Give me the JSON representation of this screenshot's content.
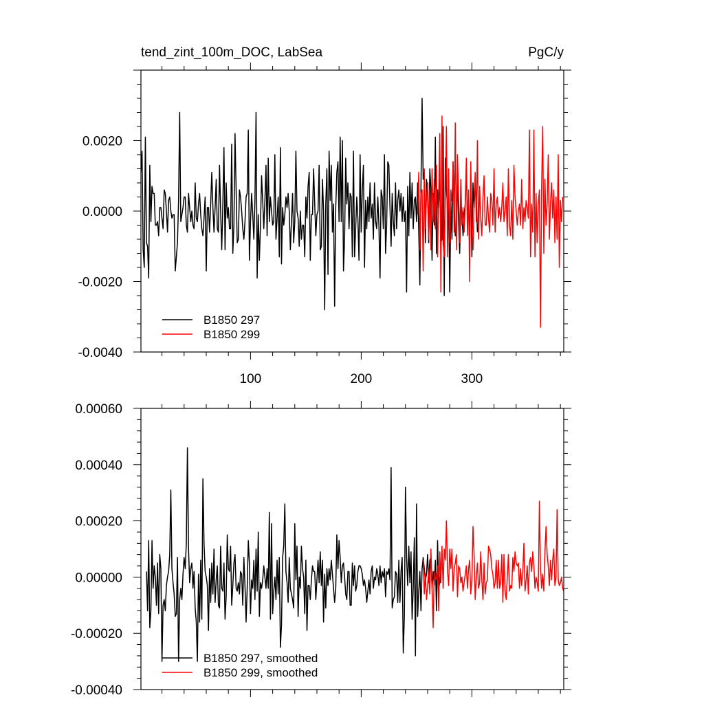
{
  "chart_data": [
    {
      "type": "line",
      "title": "tend_zint_100m_DOC, LabSea",
      "units": "PgC/y",
      "xlim": [
        1,
        383
      ],
      "ylim": [
        -0.004,
        0.004
      ],
      "xticks": [
        100,
        200,
        300
      ],
      "xtick_labels": [
        "100",
        "200",
        "300"
      ],
      "yticks": [
        -0.004,
        -0.002,
        0.0,
        0.002
      ],
      "ytick_labels": [
        "-0.0040",
        "-0.0020",
        "0.0000",
        "0.0020"
      ],
      "legend_position": "bottom-left",
      "series": [
        {
          "name": "B1850 297",
          "color": "#000000",
          "x_start": 1,
          "values": [
            0.0011,
            0.0017,
            -0.0011,
            -0.0016,
            0.0021,
            -0.0009,
            -0.001,
            -0.0019,
            0.0013,
            -0.0003,
            0.0007,
            0.0005,
            0.0005,
            -0.0004,
            -0.0004,
            -0.0003,
            -0.0007,
            0.0001,
            0.0001,
            -0.0002,
            -0.0005,
            0.0006,
            0.0005,
            0.0,
            -0.0006,
            0.0003,
            0.0004,
            0.0,
            -0.0002,
            -0.0001,
            -0.0001,
            -0.0017,
            -0.0013,
            -0.0009,
            0.0003,
            0.0028,
            -0.0003,
            -0.0001,
            0.0001,
            0.0004,
            0.0004,
            -0.0004,
            -0.0006,
            0.0005,
            0.0001,
            -0.0003,
            0.0,
            -0.0004,
            -0.0005,
            0.0008,
            -0.0002,
            -0.0003,
            0.0002,
            0.0005,
            -0.0001,
            -0.0005,
            -0.0007,
            -0.0002,
            0.0004,
            -0.0017,
            0.0001,
            0.0001,
            -0.0006,
            0.0002,
            0.0011,
            0.0001,
            -0.0006,
            0.0001,
            0.0009,
            -0.0005,
            -0.0006,
            0.0013,
            0.0,
            -0.0011,
            0.0002,
            0.0018,
            -0.0011,
            0.0008,
            -0.0002,
            0.0001,
            -0.0005,
            -0.0005,
            0.0019,
            -0.0012,
            -0.0004,
            0.0022,
            0.0006,
            -0.0009,
            -0.0008,
            0.0006,
            0.0004,
            0.0,
            -0.0005,
            -0.0008,
            -0.0003,
            0.0004,
            0.0005,
            0.0023,
            -0.0014,
            -0.0003,
            0.0005,
            -0.0001,
            -0.0008,
            0.0003,
            0.0028,
            -0.0019,
            -0.0001,
            -0.0014,
            -0.0004,
            0.001,
            0.0003,
            -0.0005,
            0.0003,
            0.0013,
            -0.0007,
            0.0015,
            -0.0003,
            0.0004,
            0.0,
            -0.0004,
            -0.0003,
            0.0016,
            -0.0008,
            -0.0002,
            0.0004,
            -0.0013,
            0.0018,
            -0.0015,
            0.0001,
            -0.0004,
            -0.0001,
            0.0004,
            0.0001,
            0.0005,
            0.0,
            -0.0011,
            -0.0003,
            0.0005,
            -0.0009,
            -0.0003,
            0.0017,
            0.0,
            -0.0002,
            -0.001,
            0.0,
            -0.0008,
            -0.0004,
            -0.0004,
            -0.0013,
            0.0004,
            -0.0002,
            0.0007,
            0.0011,
            -0.0014,
            -0.0001,
            -0.0001,
            0.0012,
            0.0002,
            -0.0007,
            -0.0001,
            0.0,
            0.0013,
            -0.0011,
            -0.001,
            0.0009,
            0.0,
            -0.0028,
            0.0002,
            0.0012,
            -0.0018,
            0.0017,
            0.0003,
            0.0013,
            -0.0006,
            0.0002,
            -0.0027,
            0.0001,
            0.0011,
            0.0014,
            -0.0003,
            0.0021,
            -0.0003,
            0.002,
            -0.0017,
            -0.0008,
            0.0015,
            0.0002,
            0.0008,
            -0.0005,
            0.0005,
            0.0004,
            -0.0013,
            0.0017,
            -0.0013,
            -0.0005,
            0.0004,
            -0.0002,
            -0.0014,
            0.0016,
            -0.0006,
            0.0006,
            0.0013,
            -0.0016,
            0.0003,
            -0.0005,
            0.0004,
            -0.0003,
            0.0008,
            -0.0002,
            0.0002,
            -0.0008,
            0.0008,
            -0.0003,
            -0.0005,
            0.0004,
            -0.0004,
            -0.0019,
            0.0006,
            0.0004,
            -0.0005,
            0.0016,
            -0.0012,
            -0.0004,
            0.0014,
            0.0013,
            0.0001,
            -0.001,
            0.0005,
            -0.0003,
            -0.0007,
            0.0008,
            -0.0005,
            0.0003,
            0.0006,
            0.0,
            0.0005,
            -0.0003,
            0.0004,
            -0.0003,
            0.0,
            -0.0023,
            0.0007,
            -0.0007,
            0.0011,
            -0.0002,
            0.0008,
            -0.0005,
            0.0003,
            0.0004,
            -0.0003,
            0.0008,
            -0.0006,
            -0.0021,
            0.0007,
            0.0032,
            0.0009,
            0.0011,
            -0.0009,
            0.0009,
            0.0005,
            -0.0009,
            0.0012,
            0.0006,
            -0.0014,
            0.0005,
            -0.0004,
            0.0021,
            -0.0012,
            0.0006,
            0.0001,
            0.0009,
            -0.0009,
            -0.0008,
            0.0024,
            -0.0024,
            0.0015,
            0.0006,
            0.0001,
            0.0002,
            -0.0023,
            0.0002,
            -0.0008,
            0.0014,
            0.0003,
            -0.0007,
            -0.0007,
            0.0011,
            -0.0003,
            -0.0012,
            0.0002,
            -0.0001,
            -0.0007,
            -0.0001,
            0.0002,
            0.0012,
            -0.0002,
            0.0002,
            -0.0009,
            0.0011,
            -0.0013,
            0.0008,
            0.0001,
            0.0007,
            0.0004,
            -0.0006
          ]
        },
        {
          "name": "B1850 299",
          "color": "#ff0000",
          "x_start": 251,
          "values": [
            -0.0001,
            0.0011,
            -0.0011,
            0.0005,
            0.0006,
            -0.0017,
            0.0012,
            -0.0005,
            0.0004,
            0.0008,
            -0.0008,
            0.0006,
            -0.0011,
            0.0012,
            -0.0003,
            0.0009,
            -0.0005,
            0.0013,
            -0.0013,
            0.0004,
            0.0022,
            -0.0023,
            0.0027,
            -0.0009,
            -0.0013,
            0.0004,
            0.0024,
            -0.0013,
            0.0012,
            -0.0009,
            0.0006,
            0.0002,
            0.0014,
            -0.0006,
            0.0025,
            -0.0011,
            0.0016,
            0.0004,
            -0.0009,
            0.0009,
            -0.0004,
            0.0001,
            -0.0006,
            0.0002,
            0.0015,
            -0.0007,
            0.0006,
            -0.002,
            0.0014,
            -0.0005,
            -0.0011,
            0.0002,
            0.0011,
            -0.0003,
            0.002,
            -0.0008,
            0.0007,
            -0.0002,
            -0.0007,
            0.0004,
            0.001,
            -0.0004,
            -0.0004,
            0.0004,
            -0.0002,
            -0.0006,
            0.0005,
            0.0003,
            -0.0004,
            0.0012,
            -0.0006,
            0.0002,
            0.0004,
            -0.0002,
            0.0001,
            -0.0003,
            0.0001,
            0.0008,
            -0.0003,
            0.0,
            0.0004,
            -0.0007,
            0.0012,
            -0.0004,
            -0.0007,
            0.0003,
            -0.0008,
            0.0013,
            0.0004,
            0.0,
            -0.0004,
            0.0,
            0.0002,
            -0.0004,
            0.0009,
            -0.0005,
            0.0001,
            -0.0003,
            0.0003,
            0.0001,
            -0.0002,
            0.0023,
            -0.0013,
            0.0002,
            -0.0006,
            0.0023,
            -0.0013,
            0.0005,
            -0.0009,
            0.0002,
            0.0006,
            -0.0033,
            0.0007,
            0.0024,
            -0.0012,
            0.0009,
            -0.0004,
            0.0002,
            0.0016,
            -0.0008,
            0.0002,
            0.0008,
            -0.0002,
            0.0006,
            -0.0009,
            0.0004,
            -0.0008,
            0.0016,
            -0.0016,
            0.0003,
            -0.0003,
            0.0004
          ]
        }
      ]
    },
    {
      "type": "line",
      "xlim": [
        1,
        383
      ],
      "ylim": [
        -0.0004,
        0.0006
      ],
      "xticks": [
        100,
        200,
        300
      ],
      "yticks": [
        -0.0004,
        -0.0002,
        0.0,
        0.0002,
        0.0004,
        0.0006
      ],
      "ytick_labels": [
        "-0.00040",
        "-0.00020",
        "0.00000",
        "0.00020",
        "0.00040",
        "0.00060"
      ],
      "legend_position": "bottom-left",
      "series": [
        {
          "name": "B1850 297, smoothed",
          "color": "#000000",
          "x_start": 6,
          "values": [
            2e-05,
            -0.00012,
            0.00013,
            -0.00018,
            -0.00012,
            0.00013,
            -4e-05,
            4e-05,
            0.0,
            -0.0001,
            5e-05,
            -0.00013,
            8e-05,
            3e-05,
            -0.0003,
            -0.0001,
            -8e-05,
            -0.00012,
            -3e-05,
            0.0,
            2e-05,
            8e-05,
            0.00031,
            3e-05,
            -2e-05,
            -6e-05,
            -0.00014,
            -0.00013,
            7e-05,
            -0.0003,
            -8e-05,
            -4e-05,
            -8e-05,
            1e-05,
            7e-05,
            3e-05,
            0.00012,
            0.00046,
            0.0001,
            -2e-05,
            3e-05,
            5e-05,
            -4e-05,
            2e-05,
            -0.00011,
            -0.00016,
            -0.0003,
            1e-05,
            -0.00016,
            6e-05,
            -0.00015,
            0.00035,
            0.00012,
            2e-05,
            0.0,
            -3e-05,
            -0.00019,
            3e-05,
            -9e-05,
            5e-05,
            -6e-05,
            0.0001,
            -9e-05,
            -1e-05,
            4e-05,
            -0.0001,
            -0.00011,
            0.00011,
            -4e-05,
            -5e-05,
            5e-05,
            -0.00015,
            -7e-05,
            0.00015,
            3e-05,
            2e-05,
            0.00011,
            -0.0001,
            -3e-05,
            5e-05,
            8e-05,
            -4e-05,
            -5e-05,
            -2e-05,
            -6e-05,
            2e-05,
            1e-05,
            -0.0001,
            7e-05,
            -3e-05,
            -0.00016,
            -4e-05,
            0.00013,
            5e-05,
            -0.00013,
            -1e-05,
            -4e-05,
            6e-05,
            -8e-05,
            0.0001,
            -5e-05,
            0.00016,
            -0.00014,
            -2e-05,
            -4e-05,
            -1e-05,
            4e-05,
            -0.0,
            -4e-05,
            3e-05,
            -4e-05,
            0.00023,
            -0.00015,
            0.00019,
            -0.00013,
            -5e-05,
            0.0,
            -8e-05,
            6e-05,
            -6e-05,
            7e-05,
            -0.00025,
            -0.00017,
            7e-05,
            0.00011,
            0.00026,
            2e-05,
            -2e-05,
            -9e-05,
            7e-05,
            -4e-05,
            -6e-05,
            -8e-05,
            -0.00011,
            0.00019,
            -1e-05,
            0.00011,
            -0.00014,
            0.0,
            -4e-05,
            0.00011,
            3e-05,
            0.0,
            -0.00013,
            6e-05,
            -0.00019,
            -3e-05,
            -3e-05,
            -8e-05,
            -1e-05,
            4e-05,
            2e-05,
            2e-05,
            -8e-05,
            -1e-05,
            6e-05,
            -2e-05,
            9e-05,
            -3e-05,
            6e-05,
            -0.00016,
            1e-05,
            -0.00011,
            3e-05,
            -3e-05,
            3e-05,
            -1e-05,
            6e-05,
            1e-05,
            -4e-05,
            -9e-05,
            -4e-05,
            0.00015,
            3e-05,
            0.00013,
            7e-05,
            -2e-05,
            4e-05,
            5e-05,
            0.0,
            -6e-05,
            -8e-05,
            2e-05,
            2e-05,
            -0.0001,
            -0.0001,
            5e-05,
            -3e-05,
            4e-05,
            -5e-05,
            -3e-05,
            2e-05,
            4e-05,
            4e-05,
            3e-05,
            1e-05,
            -3e-05,
            -1e-05,
            -4e-05,
            -9e-05,
            -5e-05,
            -1e-05,
            -6e-05,
            2e-05,
            4e-05,
            -4e-05,
            0.0,
            -1e-05,
            3e-05,
            1e-05,
            -3e-05,
            4e-05,
            -2e-05,
            2e-05,
            0.0,
            3e-05,
            -7e-05,
            2e-05,
            1e-05,
            3e-05,
            -1e-05,
            0.00039,
            -0.00011,
            -8e-05,
            -7e-05,
            2e-05,
            1e-05,
            -9e-05,
            6e-05,
            -9e-05,
            2e-05,
            7e-05,
            -0.00027,
            -0.00014,
            0.00032,
            7e-05,
            -3e-05,
            0.00011,
            -2e-05,
            9e-05,
            -0.00015,
            -4e-05,
            0.00014,
            -0.00028,
            0.00026,
            -0.00014,
            -5e-05,
            2e-05,
            -0.00012,
            3e-05,
            7e-05,
            3e-05,
            -1e-05,
            1e-05,
            8e-05,
            -2e-05,
            6e-05,
            7e-05,
            -4e-05,
            2e-05,
            -3e-05,
            6e-05,
            -0.00012,
            0.00013,
            -4e-05,
            -2e-05,
            2e-05
          ]
        },
        {
          "name": "B1850 299, smoothed",
          "color": "#ff0000",
          "x_start": 256,
          "values": [
            6e-05,
            -6e-05,
            1e-05,
            -8e-05,
            -3e-05,
            3e-05,
            -6e-05,
            0.0001,
            -4e-05,
            -0.00018,
            2e-05,
            -1e-05,
            0.0,
            4e-05,
            -0.00012,
            9e-05,
            -2e-05,
            0.00011,
            -4e-05,
            0.0001,
            6e-05,
            0.0002,
            2e-05,
            -3e-05,
            0.0001,
            3e-05,
            0.0001,
            -5e-05,
            3e-05,
            5e-05,
            8e-05,
            -7e-05,
            4e-05,
            3e-05,
            -2e-05,
            0.0,
            -5e-05,
            -2e-05,
            1e-05,
            4e-05,
            -4e-05,
            3e-05,
            6e-05,
            -6e-05,
            -1e-05,
            0.00018,
            8e-05,
            -8e-05,
            0.0,
            5e-05,
            -4e-05,
            -2e-05,
            9e-05,
            -1e-05,
            -8e-05,
            5e-05,
            -6e-05,
            -2e-05,
            -1e-05,
            0.00011,
            0.0001,
            8e-05,
            3e-05,
            1e-05,
            -4e-05,
            -2e-05,
            6e-05,
            -4e-05,
            6e-05,
            -4e-05,
            -2e-05,
            8e-05,
            -9e-05,
            8e-05,
            -5e-05,
            -8e-05,
            0.0,
            8e-05,
            -5e-05,
            -3e-05,
            -4e-05,
            7e-05,
            2e-05,
            9e-05,
            5e-05,
            4e-05,
            5e-05,
            -4e-05,
            3e-05,
            -3e-05,
            2e-05,
            0.00012,
            -5e-05,
            -1e-05,
            4e-05,
            -6e-05,
            5e-05,
            7e-05,
            2e-05,
            9e-05,
            4e-05,
            -4e-05,
            0.0,
            -2e-05,
            -5e-05,
            0.00027,
            3e-05,
            -4e-05,
            1e-05,
            -5e-05,
            9e-05,
            0.00018,
            8e-05,
            4e-05,
            -3e-05,
            6e-05,
            -1e-05,
            6e-05,
            0.0001,
            -3e-05,
            0.0,
            0.00024,
            -1e-05,
            -3e-05,
            -2e-05,
            0.0,
            -4e-05,
            -5e-05
          ]
        }
      ]
    }
  ]
}
